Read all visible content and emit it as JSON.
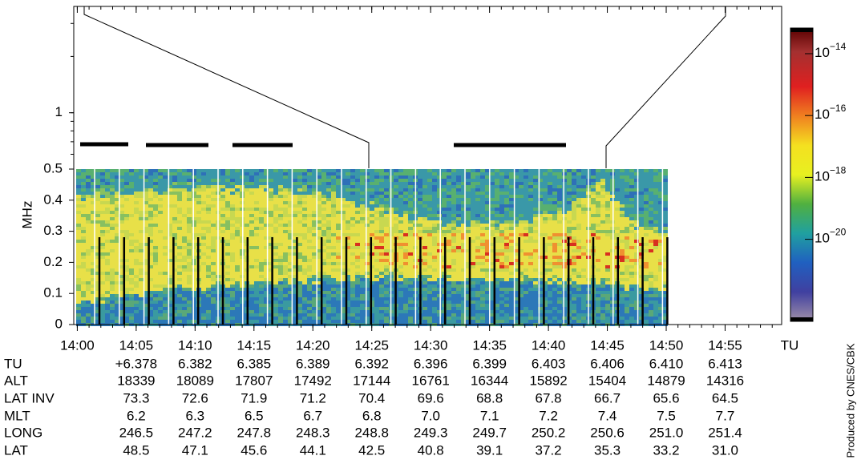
{
  "chart_data": {
    "type": "spectrogram",
    "ylabel": "MHz",
    "xlabel": "TU",
    "xlim": [
      839.7,
      899.8
    ],
    "xticks": [
      {
        "value": 840,
        "label": "14:00"
      },
      {
        "value": 845,
        "label": "14:05"
      },
      {
        "value": 850,
        "label": "14:10"
      },
      {
        "value": 855,
        "label": "14:15"
      },
      {
        "value": 860,
        "label": "14:20"
      },
      {
        "value": 865,
        "label": "14:25"
      },
      {
        "value": 870,
        "label": "14:30"
      },
      {
        "value": 875,
        "label": "14:35"
      },
      {
        "value": 880,
        "label": "14:40"
      },
      {
        "value": 885,
        "label": "14:45"
      },
      {
        "value": 890,
        "label": "14:50"
      },
      {
        "value": 895,
        "label": "14:55"
      }
    ],
    "ylim": [
      0,
      0.5
    ],
    "yticks": [
      0,
      0.1,
      0.2,
      0.3,
      0.4,
      0.5
    ],
    "upper_yscale": "log",
    "upper_ylim": [
      0.5,
      3.7
    ],
    "upper_yticks": [
      1
    ],
    "colorbar": {
      "scale": "log",
      "clim": [
        3e-23,
        5e-14
      ],
      "ticks": [
        {
          "value": 1e-14,
          "base": "10",
          "exponent": "−14"
        },
        {
          "value": 1e-16,
          "base": "10",
          "exponent": "−16"
        },
        {
          "value": 1e-18,
          "base": "10",
          "exponent": "−18"
        },
        {
          "value": 1e-20,
          "base": "10",
          "exponent": "−20"
        }
      ]
    }
  },
  "ephemeris": {
    "rows": [
      {
        "label": "TU",
        "values": [
          "+6.378",
          "6.382",
          "6.385",
          "6.389",
          "6.392",
          "6.396",
          "6.399",
          "6.403",
          "6.406",
          "6.410",
          "6.413"
        ]
      },
      {
        "label": "ALT",
        "values": [
          "18339",
          "18089",
          "17807",
          "17492",
          "17144",
          "16761",
          "16344",
          "15892",
          "15404",
          "14879",
          "14316"
        ]
      },
      {
        "label": "LAT INV",
        "values": [
          "73.3",
          "72.6",
          "71.9",
          "71.2",
          "70.4",
          "69.6",
          "68.8",
          "67.8",
          "66.7",
          "65.6",
          "64.5"
        ]
      },
      {
        "label": "MLT",
        "values": [
          "6.2",
          "6.3",
          "6.5",
          "6.7",
          "6.8",
          "7.0",
          "7.1",
          "7.2",
          "7.4",
          "7.5",
          "7.7"
        ]
      },
      {
        "label": "LONG",
        "values": [
          "246.5",
          "247.2",
          "247.8",
          "248.3",
          "248.8",
          "249.3",
          "249.7",
          "250.2",
          "250.6",
          "251.0",
          "251.4"
        ]
      },
      {
        "label": "LAT",
        "values": [
          "48.5",
          "47.1",
          "45.6",
          "44.1",
          "42.5",
          "40.8",
          "39.1",
          "37.2",
          "35.3",
          "33.2",
          "31.0"
        ]
      }
    ]
  },
  "credit": "Produced by CNES/CBK"
}
